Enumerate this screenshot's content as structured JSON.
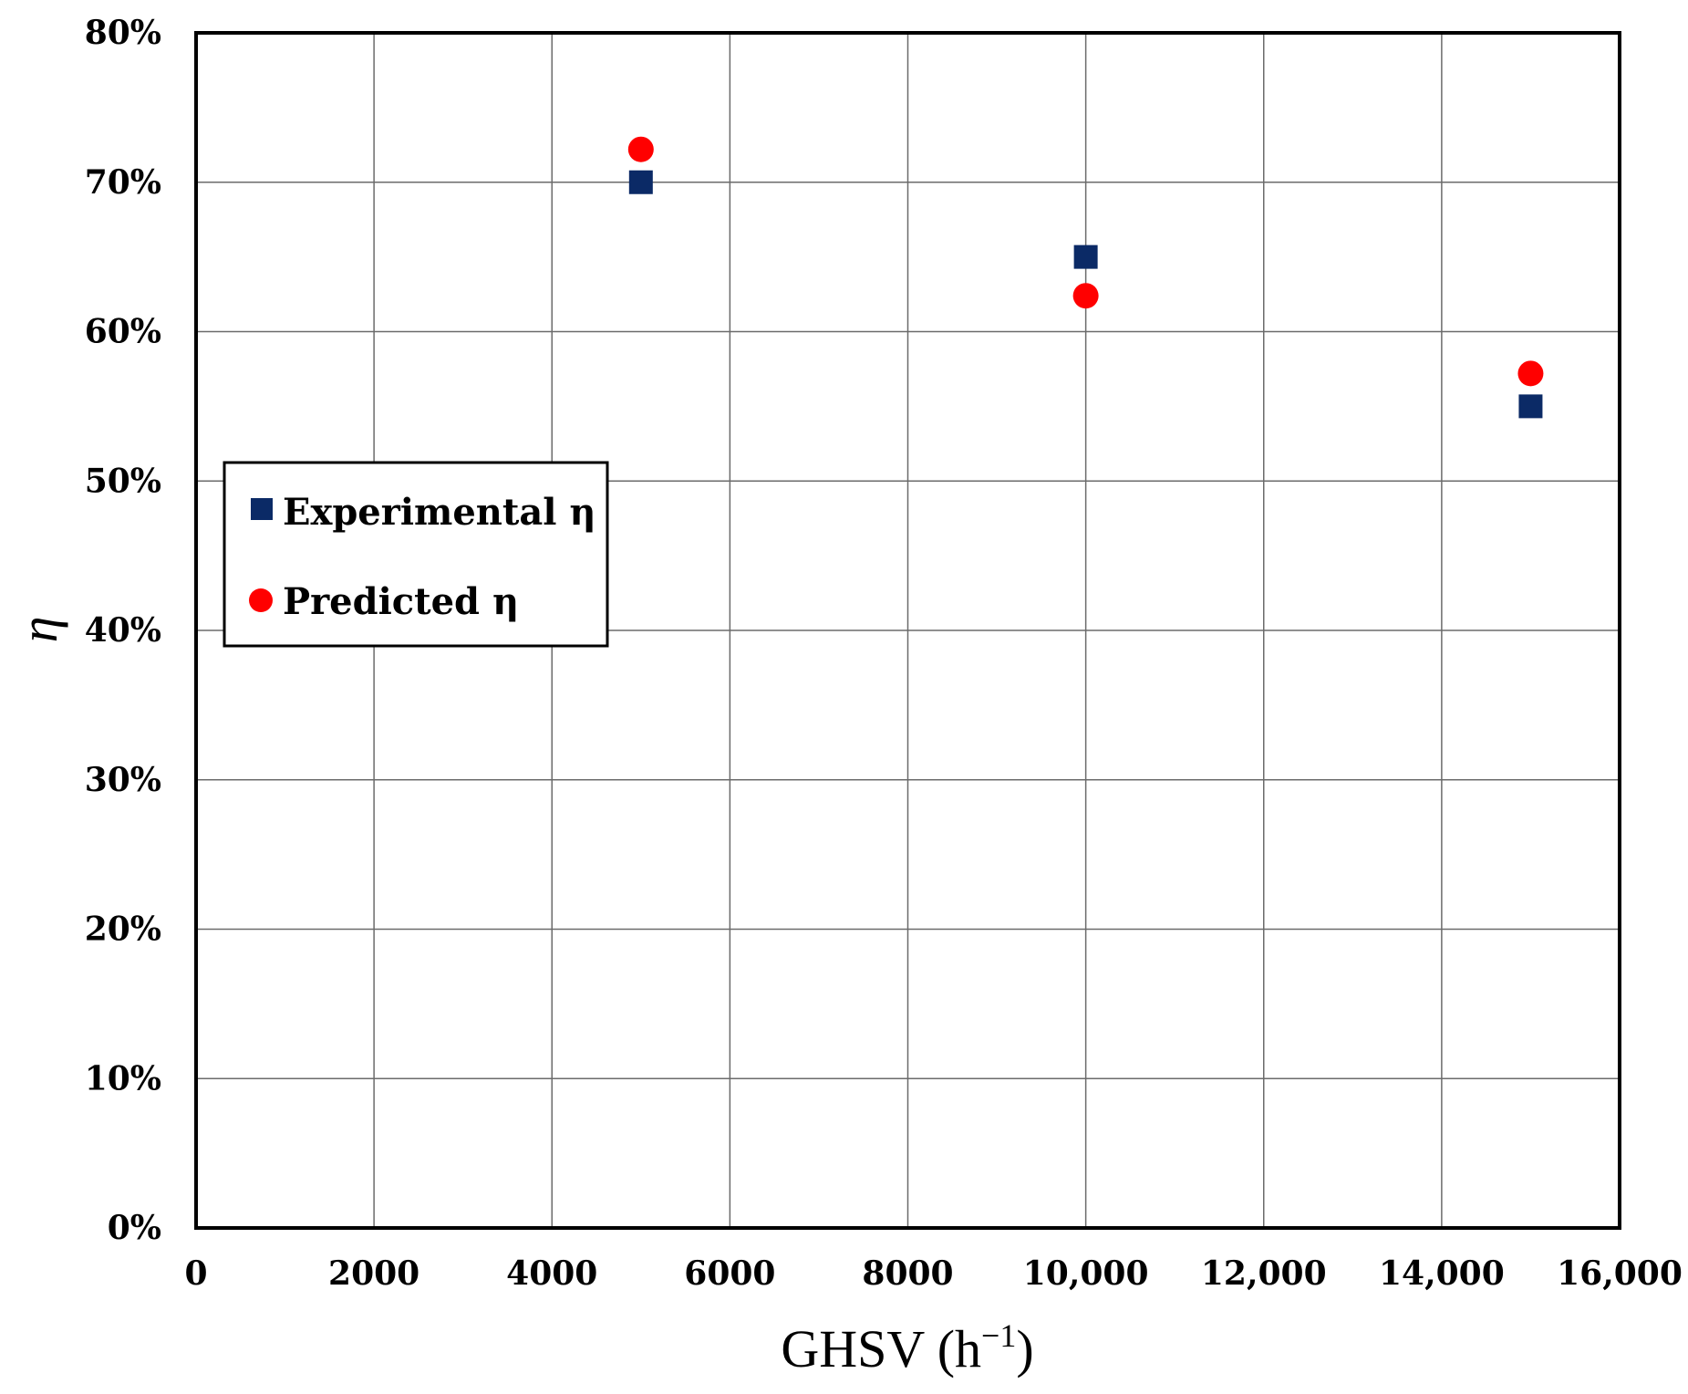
{
  "chart_data": {
    "type": "scatter",
    "xlabel": "GHSV (h",
    "xlabel_sup": "−1",
    "xlabel_close": ")",
    "ylabel": "η",
    "xlim": [
      0,
      16000
    ],
    "ylim": [
      0,
      0.8
    ],
    "grid": true,
    "legend_position": "center-left",
    "x_ticks": [
      {
        "value": 0,
        "label": "0"
      },
      {
        "value": 2000,
        "label": "2000"
      },
      {
        "value": 4000,
        "label": "4000"
      },
      {
        "value": 6000,
        "label": "6000"
      },
      {
        "value": 8000,
        "label": "8000"
      },
      {
        "value": 10000,
        "label": "10,000"
      },
      {
        "value": 12000,
        "label": "12,000"
      },
      {
        "value": 14000,
        "label": "14,000"
      },
      {
        "value": 16000,
        "label": "16,000"
      }
    ],
    "y_ticks": [
      {
        "value": 0,
        "label": "0%"
      },
      {
        "value": 0.1,
        "label": "10%"
      },
      {
        "value": 0.2,
        "label": "20%"
      },
      {
        "value": 0.3,
        "label": "30%"
      },
      {
        "value": 0.4,
        "label": "40%"
      },
      {
        "value": 0.5,
        "label": "50%"
      },
      {
        "value": 0.6,
        "label": "60%"
      },
      {
        "value": 0.7,
        "label": "70%"
      },
      {
        "value": 0.8,
        "label": "80%"
      }
    ],
    "series": [
      {
        "name": "Experimental η",
        "marker": "square",
        "color": "#0b2a66",
        "x": [
          5000,
          10000,
          15000
        ],
        "y": [
          0.7,
          0.65,
          0.55
        ]
      },
      {
        "name": "Predicted η",
        "marker": "circle",
        "color": "#ff0000",
        "x": [
          5000,
          10000,
          15000
        ],
        "y": [
          0.722,
          0.624,
          0.572
        ]
      }
    ]
  }
}
